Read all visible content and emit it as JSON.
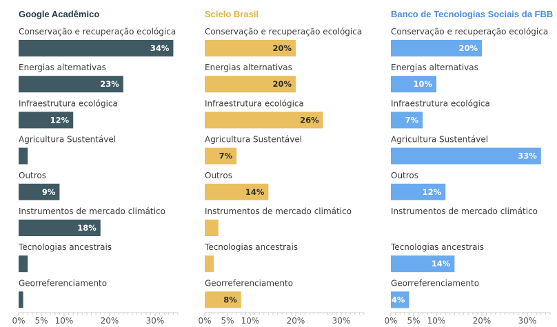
{
  "chart_data": [
    {
      "type": "bar",
      "orientation": "horizontal",
      "title": "Google Acadêmico",
      "color": "#3f5a63",
      "title_color": "#1f3a44",
      "categories": [
        "Conservação e recuperação ecológica",
        "Energias alternativas",
        "Infraestrutura ecológica",
        "Agricultura Sustentável",
        "Outros",
        "Instrumentos de mercado climático",
        "Tecnologias ancestrais",
        "Georreferenciamento"
      ],
      "values": [
        34,
        23,
        12,
        2,
        9,
        18,
        2,
        1
      ],
      "value_labels": [
        "34%",
        "23%",
        "12%",
        "",
        "9%",
        "18%",
        "",
        ""
      ],
      "xlim": [
        0,
        35
      ],
      "xticks": [
        0,
        5,
        10,
        20,
        30
      ],
      "xtick_labels": [
        "0%",
        "5%",
        "10%",
        "20%",
        "30%"
      ],
      "grid": false
    },
    {
      "type": "bar",
      "orientation": "horizontal",
      "title": "Scielo Brasil",
      "color": "#e9bf60",
      "title_color": "#e0b24a",
      "categories": [
        "Conservação e recuperação ecológica",
        "Energias alternativas",
        "Infraestrutura ecológica",
        "Agricultura Sustentável",
        "Outros",
        "Instrumentos de mercado climático",
        "Tecnologias ancestrais",
        "Georreferenciamento"
      ],
      "values": [
        20,
        20,
        26,
        7,
        14,
        3,
        2,
        8
      ],
      "value_labels": [
        "20%",
        "20%",
        "26%",
        "7%",
        "14%",
        "",
        "",
        "8%"
      ],
      "xlim": [
        0,
        35
      ],
      "xticks": [
        0,
        5,
        10,
        20,
        30
      ],
      "xtick_labels": [
        "0%",
        "5%",
        "10%",
        "20%",
        "30%"
      ],
      "grid": false
    },
    {
      "type": "bar",
      "orientation": "horizontal",
      "title": "Banco de Tecnologias Sociais da FBB",
      "color": "#6aaaee",
      "title_color": "#4a8ee0",
      "categories": [
        "Conservação e recuperação ecológica",
        "Energias alternativas",
        "Infraestrutura ecológica",
        "Agricultura Sustentável",
        "Outros",
        "Instrumentos de mercado climático",
        "Tecnologias ancestrais",
        "Georreferenciamento"
      ],
      "values": [
        20,
        10,
        7,
        33,
        12,
        0,
        14,
        4
      ],
      "value_labels": [
        "20%",
        "10%",
        "7%",
        "33%",
        "12%",
        "",
        "14%",
        "4%"
      ],
      "xlim": [
        0,
        35
      ],
      "xticks": [
        0,
        5,
        10,
        20,
        30
      ],
      "xtick_labels": [
        "0%",
        "5%",
        "10%",
        "20%",
        "30%"
      ],
      "grid": false
    }
  ]
}
